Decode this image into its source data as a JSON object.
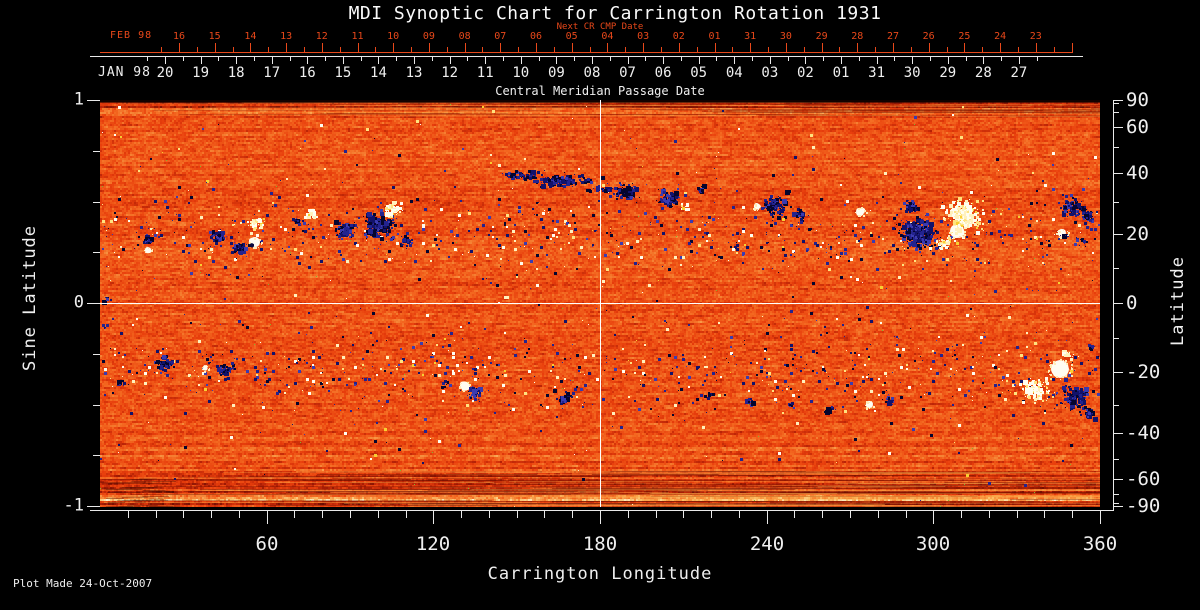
{
  "title": "MDI Synoptic Chart for Carrington Rotation 1931",
  "top_axis": {
    "next_cr_label": "Next CR CMP Date",
    "next_month": "FEB 98",
    "next_days": [
      "16",
      "15",
      "14",
      "13",
      "12",
      "11",
      "10",
      "09",
      "08",
      "07",
      "06",
      "05",
      "04",
      "03",
      "02",
      "01",
      "31",
      "30",
      "29",
      "28",
      "27",
      "26",
      "25",
      "24",
      "23"
    ],
    "cmp_month": "JAN 98",
    "cmp_days": [
      "20",
      "19",
      "18",
      "17",
      "16",
      "15",
      "14",
      "13",
      "12",
      "11",
      "10",
      "09",
      "08",
      "07",
      "06",
      "05",
      "04",
      "03",
      "02",
      "01",
      "31",
      "30",
      "29",
      "28",
      "27"
    ],
    "cmp_caption": "Central Meridian Passage Date",
    "accent_color": "#e8481a"
  },
  "left_axis": {
    "label": "Sine Latitude",
    "tick_labels": [
      "1",
      "0",
      "-1"
    ],
    "tick_values": [
      1,
      0,
      -1
    ],
    "minor_tick_values": [
      0.75,
      0.5,
      0.25,
      -0.25,
      -0.5,
      -0.75
    ]
  },
  "right_axis": {
    "label": "Latitude",
    "tick_labels": [
      "90",
      "60",
      "40",
      "20",
      "0",
      "-20",
      "-40",
      "-60",
      "-90"
    ],
    "tick_step": 10
  },
  "bottom_axis": {
    "label": "Carrington Longitude",
    "tick_labels": [
      "60",
      "120",
      "180",
      "240",
      "300",
      "360"
    ],
    "minor_tick_step": 10
  },
  "footer": {
    "plot_made": "Plot Made 24-Oct-2007"
  },
  "chart_data": {
    "type": "heatmap",
    "title": "MDI Synoptic Chart for Carrington Rotation 1931",
    "description": "Full-disk MDI magnetogram synoptic map for Carrington rotation 1931 (Dec 27 1997 - Jan 20 1998); orange background noise with dark-blue negative and white/yellow positive magnetic active regions concentrated in activity belts near sine latitude +/-0.33.",
    "x_axis": {
      "label": "Carrington Longitude",
      "range": [
        0,
        360
      ],
      "major_ticks": [
        60,
        120,
        180,
        240,
        300,
        360
      ],
      "minor_tick_step": 10
    },
    "y_axis": {
      "label": "Sine Latitude",
      "range": [
        -1,
        1
      ],
      "scale": "sine-latitude",
      "labeled_ticks": [
        1,
        0,
        -1
      ]
    },
    "y2_axis": {
      "label": "Latitude",
      "labeled_ticks": [
        90,
        60,
        40,
        20,
        0,
        -20,
        -40,
        -60,
        -90
      ],
      "tick_step": 10
    },
    "crosshair": {
      "longitude": 180,
      "sine_latitude": 0,
      "color": "#ffffff"
    },
    "palette": {
      "background_ramp": [
        "#600a02",
        "#b22006",
        "#e83e0c",
        "#f3661f",
        "#f68c3c",
        "#fac370",
        "#fff4d2"
      ],
      "negative_polarity": [
        "#05052e",
        "#12126a",
        "#23238f",
        "#3b3bb0"
      ],
      "positive_polarity": [
        "#fffdf0",
        "#fff1bd",
        "#ffe37f",
        "#f7d033"
      ],
      "rare_fleck": "#7cb832"
    },
    "activity_belts": {
      "center_abs_sine_latitude": 0.33,
      "sigma": 0.14
    },
    "features": [
      {
        "t": "dark",
        "lon": 17,
        "slat": 0.31,
        "r": 7,
        "d": 1
      },
      {
        "t": "spot_white",
        "lon": 17.3,
        "slat": 0.26,
        "r": 3
      },
      {
        "t": "dark",
        "lon": 42.5,
        "slat": 0.33,
        "r": 10,
        "d": 1
      },
      {
        "t": "dark",
        "lon": 50,
        "slat": 0.27,
        "r": 9,
        "d": 1.1
      },
      {
        "t": "spot_white",
        "lon": 55.8,
        "slat": 0.3,
        "r": 5
      },
      {
        "t": "spot_dark",
        "lon": 54.6,
        "slat": 0.285,
        "r": 2
      },
      {
        "t": "bright",
        "lon": 56.5,
        "slat": 0.39,
        "r": 10,
        "d": 0.8
      },
      {
        "t": "dark",
        "lon": 72,
        "slat": 0.4,
        "r": 6,
        "d": 0.7
      },
      {
        "t": "bright",
        "lon": 75.6,
        "slat": 0.44,
        "r": 7,
        "d": 0.7
      },
      {
        "t": "dark",
        "lon": 88,
        "slat": 0.36,
        "r": 12,
        "d": 1
      },
      {
        "t": "dark",
        "lon": 100,
        "slat": 0.38,
        "r": 18,
        "d": 1.1
      },
      {
        "t": "bright",
        "lon": 105,
        "slat": 0.46,
        "r": 10,
        "d": 1
      },
      {
        "t": "dark",
        "lon": 110,
        "slat": 0.3,
        "r": 9,
        "d": 0.8
      },
      {
        "t": "dark",
        "lon": 152,
        "slat": 0.63,
        "r": 11,
        "sx": 2.2,
        "sy": 0.5,
        "d": 0.8
      },
      {
        "t": "dark",
        "lon": 166,
        "slat": 0.6,
        "r": 16,
        "sx": 2,
        "sy": 0.55,
        "d": 0.9
      },
      {
        "t": "dark",
        "lon": 180,
        "slat": 0.56,
        "r": 8,
        "sx": 1.6,
        "sy": 0.6,
        "d": 0.7
      },
      {
        "t": "dark",
        "lon": 189,
        "slat": 0.55,
        "r": 12,
        "sx": 1.5,
        "d": 0.9
      },
      {
        "t": "dark",
        "lon": 205,
        "slat": 0.51,
        "r": 12,
        "d": 1
      },
      {
        "t": "bright",
        "lon": 210.6,
        "slat": 0.47,
        "r": 6,
        "d": 0.7
      },
      {
        "t": "dark",
        "lon": 216,
        "slat": 0.56,
        "r": 6,
        "d": 0.6
      },
      {
        "t": "dark",
        "lon": 243,
        "slat": 0.48,
        "r": 13,
        "d": 1.1
      },
      {
        "t": "spot_white",
        "lon": 236.5,
        "slat": 0.475,
        "r": 3
      },
      {
        "t": "dark",
        "lon": 252,
        "slat": 0.43,
        "r": 8,
        "d": 0.8
      },
      {
        "t": "spot_white",
        "lon": 273.6,
        "slat": 0.45,
        "r": 4
      },
      {
        "t": "dark",
        "lon": 295,
        "slat": 0.34,
        "r": 22,
        "d": 1.25
      },
      {
        "t": "spot_white",
        "lon": 308.5,
        "slat": 0.355,
        "r": 7
      },
      {
        "t": "bright",
        "lon": 311,
        "slat": 0.43,
        "r": 24,
        "d": 0.75
      },
      {
        "t": "bright",
        "lon": 303,
        "slat": 0.29,
        "r": 9,
        "d": 0.7
      },
      {
        "t": "dark",
        "lon": 292,
        "slat": 0.47,
        "r": 10,
        "d": 0.8
      },
      {
        "t": "spot_white",
        "lon": 346.3,
        "slat": 0.345,
        "r": 4
      },
      {
        "t": "dark",
        "lon": 347.5,
        "slat": 0.33,
        "r": 5,
        "d": 0.8
      },
      {
        "t": "dark",
        "lon": 350,
        "slat": 0.47,
        "r": 13,
        "d": 1
      },
      {
        "t": "dark",
        "lon": 356,
        "slat": 0.43,
        "r": 8,
        "d": 1
      },
      {
        "t": "dark",
        "lon": 354,
        "slat": 0.3,
        "r": 6,
        "d": 0.7
      },
      {
        "t": "dark",
        "lon": 23.4,
        "slat": -0.3,
        "r": 12,
        "d": 0.75
      },
      {
        "t": "dark",
        "lon": 45,
        "slat": -0.33,
        "r": 10,
        "d": 0.75
      },
      {
        "t": "spot_white",
        "lon": 37.8,
        "slat": -0.32,
        "r": 2.5
      },
      {
        "t": "dark",
        "lon": 8,
        "slat": -0.4,
        "r": 6,
        "d": 0.6
      },
      {
        "t": "spot_white",
        "lon": 131.4,
        "slat": -0.41,
        "r": 4.5
      },
      {
        "t": "dark",
        "lon": 135,
        "slat": -0.445,
        "r": 9,
        "d": 0.9
      },
      {
        "t": "dark",
        "lon": 125,
        "slat": -0.4,
        "r": 5,
        "d": 0.6
      },
      {
        "t": "dark",
        "lon": 167.4,
        "slat": -0.47,
        "r": 9,
        "d": 0.7
      },
      {
        "t": "dark",
        "lon": 219.6,
        "slat": -0.45,
        "r": 5,
        "d": 0.7
      },
      {
        "t": "dark",
        "lon": 234,
        "slat": -0.48,
        "r": 5,
        "d": 0.7
      },
      {
        "t": "dark",
        "lon": 248.4,
        "slat": -0.505,
        "r": 5,
        "d": 0.7
      },
      {
        "t": "dark",
        "lon": 262.8,
        "slat": -0.53,
        "r": 6,
        "d": 0.7
      },
      {
        "t": "dark",
        "lon": 284,
        "slat": -0.48,
        "r": 7,
        "d": 0.8
      },
      {
        "t": "spot_white",
        "lon": 277,
        "slat": -0.5,
        "r": 3.5
      },
      {
        "t": "spot_white",
        "lon": 345.6,
        "slat": -0.325,
        "r": 9
      },
      {
        "t": "bright",
        "lon": 337,
        "slat": -0.43,
        "r": 16,
        "d": 0.9
      },
      {
        "t": "dark",
        "lon": 351,
        "slat": -0.47,
        "r": 16,
        "d": 1.2
      },
      {
        "t": "bright",
        "lon": 349,
        "slat": -0.26,
        "r": 7,
        "d": 0.6
      },
      {
        "t": "dark",
        "lon": 357.5,
        "slat": -0.22,
        "r": 5,
        "d": 0.6
      },
      {
        "t": "dark",
        "lon": 356,
        "slat": -0.55,
        "r": 7,
        "d": 0.7
      },
      {
        "t": "dark",
        "lon": 3,
        "slat": 0.02,
        "r": 5,
        "d": 0.5
      },
      {
        "t": "dark",
        "lon": 2,
        "slat": -0.12,
        "r": 5,
        "d": 0.5
      }
    ]
  }
}
